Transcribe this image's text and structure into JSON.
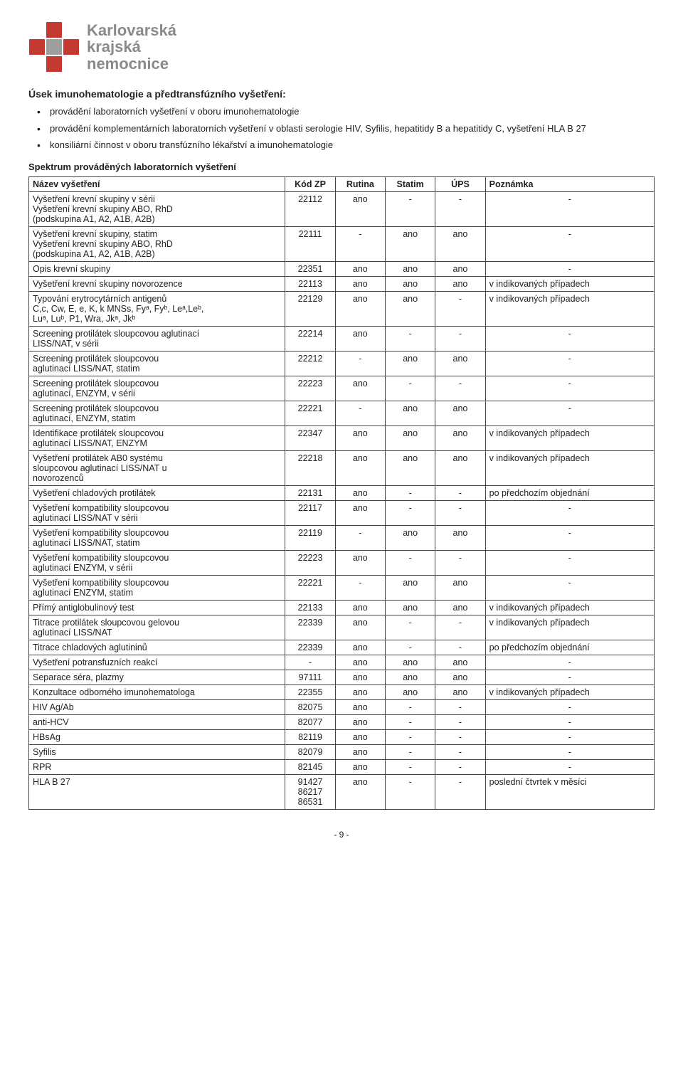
{
  "logo": {
    "line1": "Karlovarská",
    "line2": "krajská",
    "line3": "nemocnice"
  },
  "heading": "Úsek imunohematologie a předtransfúzního vyšetření:",
  "bullets": [
    "provádění laboratorních vyšetření v oboru imunohematologie",
    "provádění komplementárních laboratorních vyšetření v oblasti serologie HIV, Syfilis, hepatitidy B a hepatitidy C, vyšetření HLA B 27",
    "konsiliární činnost v oboru transfúzního lékařství a imunohematologie"
  ],
  "table_heading": "Spektrum prováděných laboratorních vyšetření",
  "columns": [
    "Název vyšetření",
    "Kód ZP",
    "Rutina",
    "Statim",
    "ÚPS",
    "Poznámka"
  ],
  "rows": [
    [
      "Vyšetření krevní skupiny v sérii\nVyšetření krevní skupiny ABO, RhD\n(podskupina A1, A2, A1B, A2B)",
      "22112",
      "ano",
      "-",
      "-",
      "-"
    ],
    [
      "Vyšetření krevní skupiny, statim\nVyšetření krevní skupiny ABO, RhD\n(podskupina A1, A2, A1B, A2B)",
      "22111",
      "-",
      "ano",
      "ano",
      "-"
    ],
    [
      "Opis krevní skupiny",
      "22351",
      "ano",
      "ano",
      "ano",
      "-"
    ],
    [
      "Vyšetření krevní skupiny novorozence",
      "22113",
      "ano",
      "ano",
      "ano",
      "v indikovaných případech"
    ],
    [
      "Typování erytrocytárních antigenů\nC,c, Cw, E, e, K, k MNSs, Fyᵃ, Fyᵇ, Leᵃ,Leᵇ,\nLuᵃ, Luᵇ, P1, Wra, Jkᵃ, Jkᵇ",
      "22129",
      "ano",
      "ano",
      "-",
      "v indikovaných případech"
    ],
    [
      "Screening protilátek sloupcovou aglutinací\nLISS/NAT, v sérii",
      "22214",
      "ano",
      "-",
      "-",
      "-"
    ],
    [
      "Screening protilátek sloupcovou\naglutinací LISS/NAT, statim",
      "22212",
      "-",
      "ano",
      "ano",
      "-"
    ],
    [
      "Screening protilátek sloupcovou\naglutinací, ENZYM, v sérii",
      "22223",
      "ano",
      "-",
      "-",
      "-"
    ],
    [
      "Screening protilátek sloupcovou\naglutinací, ENZYM, statim",
      "22221",
      "-",
      "ano",
      "ano",
      "-"
    ],
    [
      "Identifikace protilátek sloupcovou\naglutinací LISS/NAT, ENZYM",
      "22347",
      "ano",
      "ano",
      "ano",
      "v indikovaných případech"
    ],
    [
      "Vyšetření protilátek AB0 systému\nsloupcovou aglutinací LISS/NAT u\nnovorozenců",
      "22218",
      "ano",
      "ano",
      "ano",
      "v indikovaných případech"
    ],
    [
      "Vyšetření chladových protilátek",
      "22131",
      "ano",
      "-",
      "-",
      "po předchozím objednání"
    ],
    [
      "Vyšetření kompatibility sloupcovou\naglutinací LISS/NAT v sérii",
      "22117",
      "ano",
      "-",
      "-",
      "-"
    ],
    [
      "Vyšetření kompatibility sloupcovou\naglutinací LISS/NAT, statim",
      "22119",
      "-",
      "ano",
      "ano",
      "-"
    ],
    [
      "Vyšetření kompatibility sloupcovou\naglutinací ENZYM, v sérii",
      "22223",
      "ano",
      "-",
      "-",
      "-"
    ],
    [
      "Vyšetření kompatibility sloupcovou\naglutinací ENZYM, statim",
      "22221",
      "-",
      "ano",
      "ano",
      "-"
    ],
    [
      "Přímý antiglobulinový test",
      "22133",
      "ano",
      "ano",
      "ano",
      "v indikovaných případech"
    ],
    [
      "Titrace protilátek sloupcovou gelovou\naglutinací LISS/NAT",
      "22339",
      "ano",
      "-",
      "-",
      "v indikovaných případech"
    ],
    [
      "Titrace chladových aglutininů",
      "22339",
      "ano",
      "-",
      "-",
      "po předchozím objednání"
    ],
    [
      "Vyšetření potransfuzních reakcí",
      "-",
      "ano",
      "ano",
      "ano",
      "-"
    ],
    [
      "Separace séra, plazmy",
      "97111",
      "ano",
      "ano",
      "ano",
      "-"
    ],
    [
      "Konzultace odborného imunohematologa",
      "22355",
      "ano",
      "ano",
      "ano",
      "v indikovaných případech"
    ],
    [
      "HIV Ag/Ab",
      "82075",
      "ano",
      "-",
      "-",
      "-"
    ],
    [
      "anti-HCV",
      "82077",
      "ano",
      "-",
      "-",
      "-"
    ],
    [
      "HBsAg",
      "82119",
      "ano",
      "-",
      "-",
      "-"
    ],
    [
      "Syfilis",
      "82079",
      "ano",
      "-",
      "-",
      "-"
    ],
    [
      "RPR",
      "82145",
      "ano",
      "-",
      "-",
      "-"
    ],
    [
      "HLA B 27",
      "91427\n86217\n86531",
      "ano",
      "-",
      "-",
      "poslední čtvrtek v měsíci"
    ]
  ],
  "footer": "- 9 -"
}
